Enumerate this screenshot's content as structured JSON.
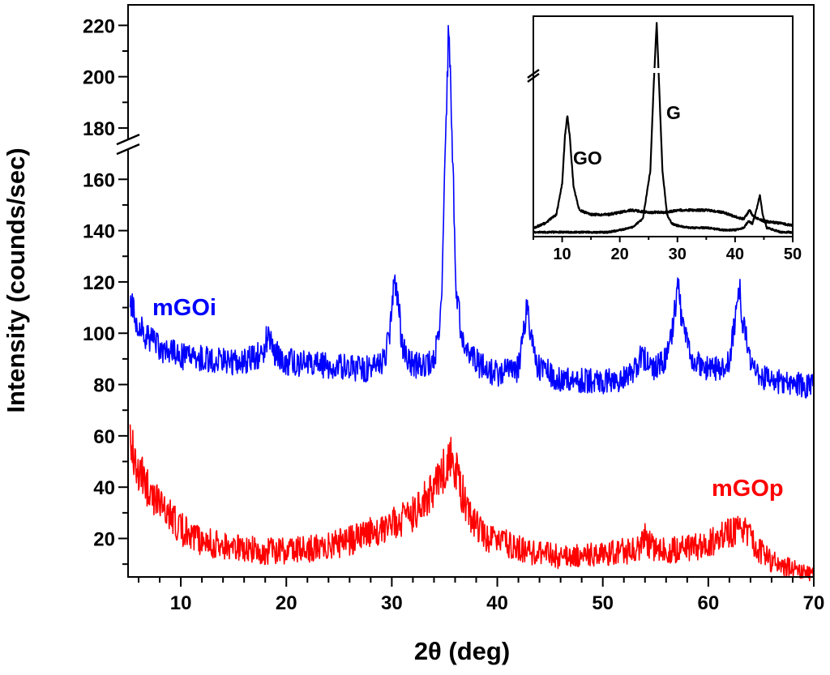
{
  "chart_data": [
    {
      "id": "main",
      "type": "line",
      "title": "",
      "xlabel": "2θ (deg)",
      "ylabel": "Intensity (counds/sec)",
      "xlim": [
        5,
        70
      ],
      "ylim": [
        5,
        228
      ],
      "xticks": [
        10,
        20,
        30,
        40,
        50,
        60,
        70
      ],
      "yticks": [
        20,
        40,
        60,
        80,
        100,
        120,
        140,
        160,
        180,
        200,
        220
      ],
      "axis_break_y": 173,
      "grid": false,
      "series": [
        {
          "name": "mGOi",
          "color": "#0000ff",
          "baseline": [
            [
              5.2,
              112
            ],
            [
              6,
              102
            ],
            [
              7,
              98
            ],
            [
              8,
              94
            ],
            [
              10,
              91
            ],
            [
              15,
              89
            ],
            [
              17,
              90
            ],
            [
              17.8,
              93
            ],
            [
              18.3,
              100
            ],
            [
              18.8,
              93
            ],
            [
              20,
              89
            ],
            [
              22,
              88
            ],
            [
              25,
              87
            ],
            [
              28,
              86
            ],
            [
              29.3,
              89
            ],
            [
              29.8,
              100
            ],
            [
              30.2,
              122
            ],
            [
              30.6,
              112
            ],
            [
              31,
              95
            ],
            [
              31.8,
              88
            ],
            [
              33,
              87
            ],
            [
              34,
              89
            ],
            [
              34.7,
              110
            ],
            [
              35.1,
              180
            ],
            [
              35.4,
              220
            ],
            [
              35.7,
              180
            ],
            [
              36.1,
              118
            ],
            [
              36.6,
              100
            ],
            [
              37.3,
              92
            ],
            [
              38.5,
              87
            ],
            [
              40,
              84
            ],
            [
              42,
              86
            ],
            [
              42.5,
              100
            ],
            [
              42.8,
              110
            ],
            [
              43.2,
              98
            ],
            [
              43.8,
              87
            ],
            [
              46,
              82
            ],
            [
              50,
              81
            ],
            [
              52,
              82
            ],
            [
              53.2,
              86
            ],
            [
              53.7,
              92
            ],
            [
              54,
              90
            ],
            [
              54.5,
              86
            ],
            [
              56,
              90
            ],
            [
              56.7,
              103
            ],
            [
              57.1,
              120
            ],
            [
              57.5,
              104
            ],
            [
              58.3,
              90
            ],
            [
              59.5,
              86
            ],
            [
              61,
              86
            ],
            [
              62,
              90
            ],
            [
              62.6,
              108
            ],
            [
              62.9,
              120
            ],
            [
              63.3,
              104
            ],
            [
              64,
              88
            ],
            [
              65.5,
              82
            ],
            [
              67,
              81
            ],
            [
              70,
              79
            ]
          ],
          "noise": 2.5
        },
        {
          "name": "mGOp",
          "color": "#ff0000",
          "baseline": [
            [
              5.2,
              60
            ],
            [
              6,
              48
            ],
            [
              7,
              39
            ],
            [
              8,
              33
            ],
            [
              9,
              28
            ],
            [
              10,
              24
            ],
            [
              11,
              21
            ],
            [
              12,
              19
            ],
            [
              14,
              17
            ],
            [
              16,
              16
            ],
            [
              18,
              15
            ],
            [
              20,
              15
            ],
            [
              22,
              16
            ],
            [
              24,
              17
            ],
            [
              26,
              19
            ],
            [
              28,
              22
            ],
            [
              30,
              25
            ],
            [
              31.5,
              28
            ],
            [
              32.5,
              32
            ],
            [
              33.5,
              38
            ],
            [
              34.3,
              42
            ],
            [
              35,
              47
            ],
            [
              35.6,
              50
            ],
            [
              36.1,
              46
            ],
            [
              36.8,
              36
            ],
            [
              37.5,
              28
            ],
            [
              38.5,
              22
            ],
            [
              40,
              19
            ],
            [
              42,
              16
            ],
            [
              44,
              14
            ],
            [
              46,
              13
            ],
            [
              48,
              13
            ],
            [
              50,
              14
            ],
            [
              52,
              15
            ],
            [
              53.5,
              16
            ],
            [
              54,
              20
            ],
            [
              54.5,
              17
            ],
            [
              56,
              15
            ],
            [
              58,
              16
            ],
            [
              60,
              18
            ],
            [
              62,
              22
            ],
            [
              63,
              25
            ],
            [
              64,
              20
            ],
            [
              65,
              15
            ],
            [
              66,
              11
            ],
            [
              68,
              8
            ],
            [
              70,
              6
            ]
          ],
          "noise": 6
        }
      ],
      "annotations": [
        "mGOi",
        "mGOp"
      ]
    },
    {
      "id": "inset",
      "type": "line",
      "title": "",
      "xlabel": "",
      "ylabel": "",
      "xlim": [
        5,
        50
      ],
      "ylim": [
        0,
        100
      ],
      "xticks": [
        10,
        20,
        30,
        40,
        50
      ],
      "grid": false,
      "series": [
        {
          "name": "GO",
          "color": "#000000",
          "baseline": [
            [
              5,
              4
            ],
            [
              7,
              6
            ],
            [
              9,
              10
            ],
            [
              10,
              24
            ],
            [
              10.5,
              46
            ],
            [
              10.9,
              55
            ],
            [
              11.3,
              46
            ],
            [
              12,
              22
            ],
            [
              13,
              12
            ],
            [
              15,
              10
            ],
            [
              18,
              10
            ],
            [
              20,
              11
            ],
            [
              22,
              12
            ],
            [
              25,
              11
            ],
            [
              28,
              11
            ],
            [
              30,
              12
            ],
            [
              32,
              12
            ],
            [
              35,
              12
            ],
            [
              38,
              11
            ],
            [
              40,
              9
            ],
            [
              41.5,
              8
            ],
            [
              42.5,
              12
            ],
            [
              43.2,
              9
            ],
            [
              45,
              7
            ],
            [
              48,
              6
            ],
            [
              50,
              5
            ]
          ],
          "noise": 0.5
        },
        {
          "name": "G",
          "color": "#000000",
          "baseline": [
            [
              5,
              2
            ],
            [
              10,
              2
            ],
            [
              15,
              2
            ],
            [
              18,
              2
            ],
            [
              20,
              3
            ],
            [
              22,
              4
            ],
            [
              24,
              8
            ],
            [
              25.3,
              30
            ],
            [
              25.9,
              70
            ],
            [
              26.4,
              97
            ],
            [
              26.8,
              70
            ],
            [
              27.4,
              30
            ],
            [
              28.2,
              10
            ],
            [
              29,
              6
            ],
            [
              30,
              5
            ],
            [
              32,
              4
            ],
            [
              35,
              4
            ],
            [
              38,
              3
            ],
            [
              40,
              3
            ],
            [
              41.5,
              4
            ],
            [
              42.3,
              7
            ],
            [
              43,
              6
            ],
            [
              43.7,
              12
            ],
            [
              44.3,
              19
            ],
            [
              44.8,
              10
            ],
            [
              45.5,
              4
            ],
            [
              48,
              2
            ],
            [
              50,
              2
            ]
          ],
          "noise": 0.4
        }
      ],
      "annotations": [
        "GO",
        "G"
      ]
    }
  ]
}
